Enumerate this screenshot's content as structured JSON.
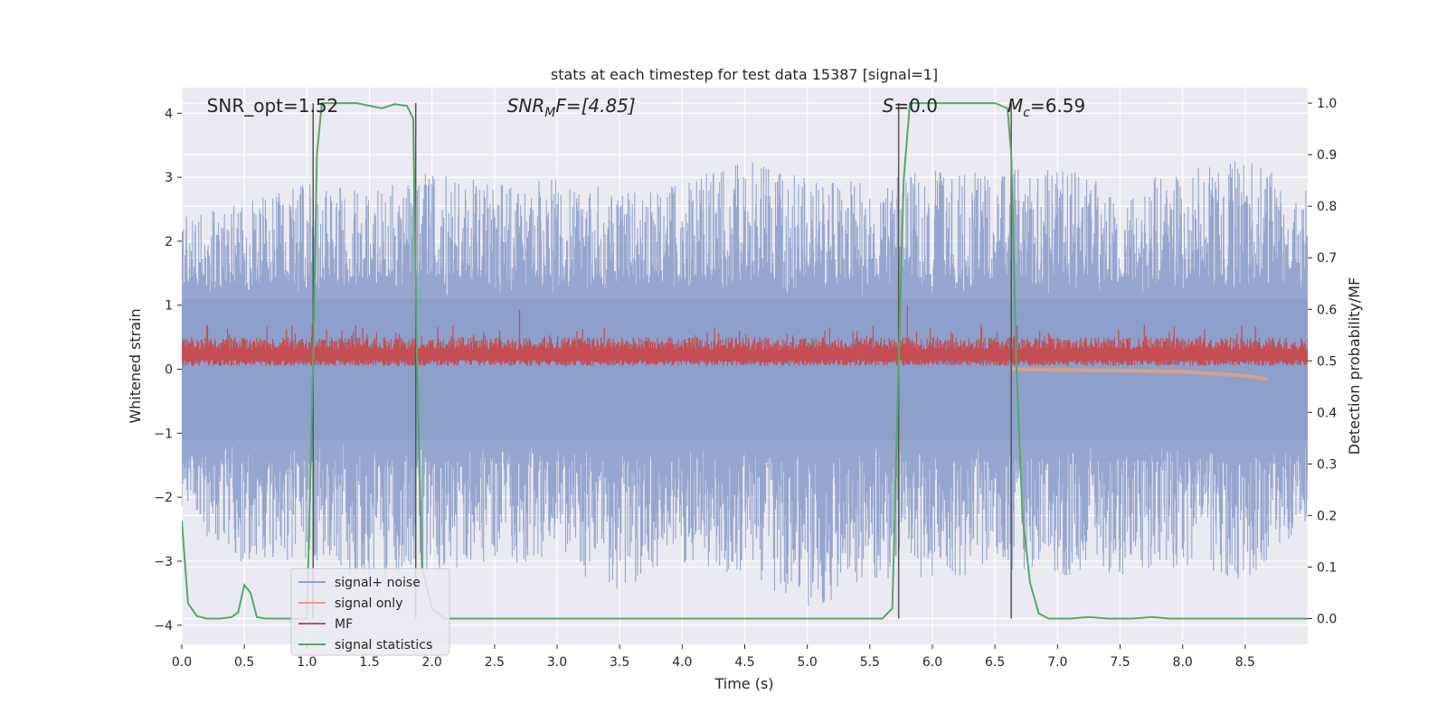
{
  "chart_data": {
    "type": "line",
    "title": "stats at each timestep for test data 15387 [signal=1]",
    "xlabel": "Time (s)",
    "ylabel": "Whitened strain",
    "ylabel_right": "Detection probability/MF",
    "xlim": [
      0.0,
      9.0
    ],
    "ylim": [
      -4.3,
      4.4
    ],
    "ylim_right": [
      -0.05,
      1.03
    ],
    "xticks": [
      "0.0",
      "0.5",
      "1.0",
      "1.5",
      "2.0",
      "2.5",
      "3.0",
      "3.5",
      "4.0",
      "4.5",
      "5.0",
      "5.5",
      "6.0",
      "6.5",
      "7.0",
      "7.5",
      "8.0",
      "8.5"
    ],
    "xtick_values": [
      0.0,
      0.5,
      1.0,
      1.5,
      2.0,
      2.5,
      3.0,
      3.5,
      4.0,
      4.5,
      5.0,
      5.5,
      6.0,
      6.5,
      7.0,
      7.5,
      8.0,
      8.5
    ],
    "yticks_left": [
      "−4",
      "−3",
      "−2",
      "−1",
      "0",
      "1",
      "2",
      "3",
      "4"
    ],
    "ytick_values_left": [
      -4,
      -3,
      -2,
      -1,
      0,
      1,
      2,
      3,
      4
    ],
    "yticks_right": [
      "0.0",
      "0.1",
      "0.2",
      "0.3",
      "0.4",
      "0.5",
      "0.6",
      "0.7",
      "0.8",
      "0.9",
      "1.0"
    ],
    "ytick_values_right": [
      0.0,
      0.1,
      0.2,
      0.3,
      0.4,
      0.5,
      0.6,
      0.7,
      0.8,
      0.9,
      1.0
    ],
    "grid": true,
    "legend_position": "lower-left",
    "annotations": [
      {
        "text": "SNR_opt=1.52",
        "x": 0.2
      },
      {
        "text": "SNR",
        "sub": "M",
        "suffix": "F=[4.85]",
        "x": 2.6
      },
      {
        "text": "S",
        "suffix": "=0.0",
        "x": 5.6
      },
      {
        "text": "M",
        "sub": "c",
        "suffix": "=6.59",
        "x": 6.6
      }
    ],
    "vertical_lines_x": [
      1.05,
      1.87,
      5.73,
      6.63
    ],
    "noise_envelope": {
      "x": [
        0.0,
        0.5,
        1.0,
        1.5,
        2.0,
        2.5,
        3.0,
        3.5,
        4.0,
        4.5,
        5.0,
        5.5,
        6.0,
        6.5,
        7.0,
        7.5,
        8.0,
        8.5,
        9.0
      ],
      "upper": [
        2.4,
        2.6,
        2.9,
        2.8,
        3.1,
        3.0,
        3.0,
        2.8,
        2.9,
        3.3,
        3.0,
        3.0,
        3.1,
        3.1,
        3.2,
        2.9,
        3.1,
        3.3,
        2.8
      ],
      "lower": [
        -2.3,
        -3.1,
        -3.0,
        -3.3,
        -3.2,
        -3.0,
        -3.1,
        -3.5,
        -3.1,
        -3.2,
        -3.8,
        -3.3,
        -3.4,
        -3.1,
        -3.3,
        -3.3,
        -3.1,
        -3.3,
        -2.5
      ]
    },
    "series": [
      {
        "name": "signal+ noise",
        "color": "#8da0cb",
        "axis": "left"
      },
      {
        "name": "signal only",
        "color": "#e8a07e",
        "axis": "left",
        "x": [
          6.63,
          7.0,
          7.5,
          8.0,
          8.5,
          8.68
        ],
        "y": [
          0.0,
          -0.01,
          -0.02,
          -0.04,
          -0.1,
          -0.15
        ]
      },
      {
        "name": "MF",
        "color": "#c44e52",
        "axis": "left",
        "band_low": 0.05,
        "band_high": 0.5,
        "peaks": [
          {
            "x": 2.7,
            "y": 0.93
          },
          {
            "x": 5.8,
            "y": 1.0
          }
        ]
      },
      {
        "name": "signal statistics",
        "color": "#55a868",
        "axis": "right",
        "x": [
          0.0,
          0.05,
          0.12,
          0.2,
          0.3,
          0.4,
          0.45,
          0.5,
          0.55,
          0.6,
          0.67,
          0.75,
          0.9,
          1.0,
          1.05,
          1.08,
          1.12,
          1.2,
          1.4,
          1.6,
          1.7,
          1.8,
          1.85,
          1.88,
          1.92,
          2.0,
          2.05,
          2.1,
          2.2,
          3.0,
          4.0,
          5.0,
          5.6,
          5.68,
          5.73,
          5.77,
          5.82,
          5.9,
          6.0,
          6.5,
          6.6,
          6.63,
          6.67,
          6.72,
          6.78,
          6.85,
          6.93,
          7.1,
          7.25,
          7.4,
          7.6,
          7.75,
          7.9,
          8.5,
          9.0
        ],
        "y": [
          0.19,
          0.03,
          0.005,
          0.0,
          0.0,
          0.003,
          0.012,
          0.065,
          0.05,
          0.003,
          0.0,
          0.0,
          0.0,
          0.0,
          0.5,
          0.9,
          1.0,
          1.0,
          1.0,
          0.99,
          0.998,
          0.995,
          0.97,
          0.5,
          0.1,
          0.02,
          0.01,
          0.0,
          0.0,
          0.0,
          0.0,
          0.0,
          0.0,
          0.02,
          0.5,
          0.85,
          1.0,
          1.0,
          1.0,
          1.0,
          0.99,
          0.9,
          0.5,
          0.2,
          0.07,
          0.01,
          0.0,
          0.0,
          0.003,
          0.0,
          0.0,
          0.003,
          0.0,
          0.0,
          0.0
        ]
      }
    ]
  }
}
